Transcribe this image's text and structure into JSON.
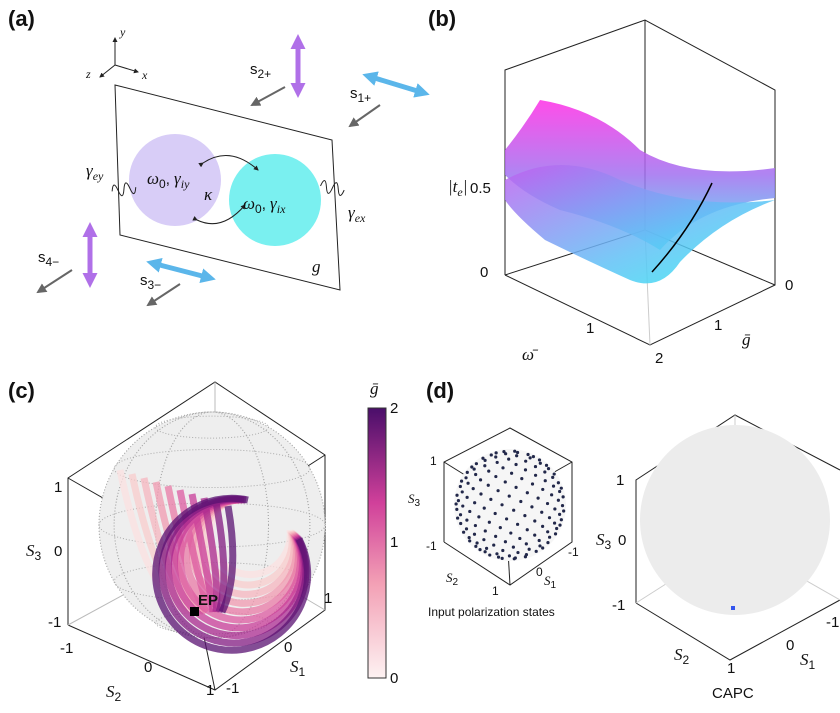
{
  "a": {
    "label": "(a)",
    "axis_x": "x",
    "axis_y": "y",
    "axis_z": "z",
    "s2p": {
      "base": "s",
      "sub": "2+"
    },
    "s1p": {
      "base": "s",
      "sub": "1+"
    },
    "s4m": {
      "base": "s",
      "sub": "4−"
    },
    "s3m": {
      "base": "s",
      "sub": "3−"
    },
    "gamma_ey": {
      "base": "γ",
      "sub": "ey"
    },
    "gamma_ex": {
      "base": "γ",
      "sub": "ex"
    },
    "mode_y": {
      "omega": "ω",
      "omega_sub": "0",
      "sep": ", ",
      "gamma": "γ",
      "gamma_sub": "iy"
    },
    "mode_x": {
      "omega": "ω",
      "omega_sub": "0",
      "sep": ", ",
      "gamma": "γ",
      "gamma_sub": "ix"
    },
    "kappa": "κ",
    "g": "g"
  },
  "b": {
    "label": "(b)",
    "z_label": {
      "base": "|t",
      "sub": "e",
      "end": "|"
    },
    "z_ticks": [
      "0",
      "0.5"
    ],
    "omega_label": "ω̄",
    "omega_ticks": [
      "1"
    ],
    "g_label": "ḡ",
    "g_ticks": [
      "0",
      "1",
      "2"
    ]
  },
  "c": {
    "label": "(c)",
    "colorbar_label": "ḡ",
    "colorbar_ticks": [
      "0",
      "1",
      "2"
    ],
    "s3_label": {
      "base": "S",
      "sub": "3"
    },
    "s3_ticks": [
      "1",
      "0",
      "-1"
    ],
    "s2_label": {
      "base": "S",
      "sub": "2"
    },
    "s2_ticks": [
      "-1",
      "0",
      "1"
    ],
    "s1_label": {
      "base": "S",
      "sub": "1"
    },
    "s1_ticks": [
      "1",
      "0",
      "-1"
    ],
    "ep": "EP"
  },
  "d": {
    "label": "(d)",
    "small": {
      "s3_label": {
        "base": "S",
        "sub": "3"
      },
      "s3_ticks": [
        "1",
        "-1"
      ],
      "s2_label": {
        "base": "S",
        "sub": "2"
      },
      "s2_ticks": [
        "1"
      ],
      "s1_label": {
        "base": "S",
        "sub": "1"
      },
      "s1_ticks": [
        "0",
        "-1"
      ],
      "caption": "Input polarization states"
    },
    "large": {
      "s3_label": {
        "base": "S",
        "sub": "3"
      },
      "s3_ticks": [
        "1",
        "0",
        "-1"
      ],
      "s2_label": {
        "base": "S",
        "sub": "2"
      },
      "s2_ticks": [
        "1"
      ],
      "s1_label": {
        "base": "S",
        "sub": "1"
      },
      "s1_ticks": [
        "0",
        "-1"
      ],
      "caption": "CAPC"
    }
  }
}
